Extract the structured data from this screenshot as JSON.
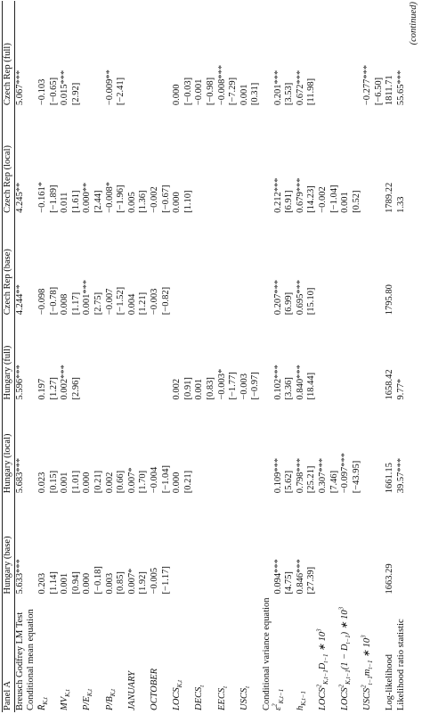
{
  "panel": "Panel A",
  "columns": [
    "Hungary (base)",
    "Hungary (local)",
    "Hungary (full)",
    "Czech Rep (base)",
    "Czech Rep (local)",
    "Czech Rep (full)"
  ],
  "rows": [
    {
      "label": "Breusch Godfrey LM Test",
      "cells": [
        "5.633***",
        "5.683***",
        "5.596***",
        "4.244**",
        "4.245**",
        "5.067***"
      ]
    },
    {
      "label": "Conditional mean equation"
    },
    {
      "label": [
        "R̄",
        {
          "sub": "K,t"
        }
      ],
      "cells": [
        "0.203",
        "0.023",
        "0.197",
        "−0.098",
        "−0.161*",
        "−0.103"
      ]
    },
    {
      "cells": [
        "[1.14]",
        "[0.15]",
        "[1.27]",
        "[−0.78]",
        "[−1.89]",
        "[−0.65]"
      ]
    },
    {
      "label": [
        "MV",
        {
          "sub": "K,t"
        }
      ],
      "cells": [
        "0.001",
        "0.001",
        "0.002***",
        "0.008",
        "0.011",
        "0.015***"
      ]
    },
    {
      "cells": [
        "[0.94]",
        "[1.01]",
        "[2.96]",
        "[1.17]",
        "[1.61]",
        "[2.92]"
      ]
    },
    {
      "label": [
        "P/E",
        {
          "sub": "K,t"
        }
      ],
      "cells": [
        "0.000",
        "0.000",
        null,
        "0.001***",
        "0.000**",
        null
      ]
    },
    {
      "cells": [
        "[−0.18]",
        "[0.21]",
        null,
        "[2.75]",
        "[2.44]",
        null
      ]
    },
    {
      "label": [
        "P/B",
        {
          "sub": "K,t"
        }
      ],
      "cells": [
        "0.003",
        "0.002",
        null,
        "−0.007",
        "−0.008*",
        "−0.009**"
      ]
    },
    {
      "cells": [
        "[0.85]",
        "[0.66]",
        null,
        "[−1.52]",
        "[−1.96]",
        "[−2.41]"
      ]
    },
    {
      "label": [
        "JANUARY"
      ],
      "cells": [
        "0.007*",
        "0.007*",
        null,
        "0.004",
        "0.005",
        null
      ]
    },
    {
      "cells": [
        "[1.92]",
        "[1.70]",
        null,
        "[1.21]",
        "[1.36]",
        null
      ]
    },
    {
      "label": [
        "OCTOBER"
      ],
      "cells": [
        "−0.005",
        "−0.004",
        null,
        "−0.003",
        "−0.002",
        null
      ]
    },
    {
      "cells": [
        "[−1.17]",
        "[−1.04]",
        null,
        "[−0.82]",
        "[−0.67]",
        null
      ]
    },
    {
      "label": [
        "LOCS",
        {
          "sub": "K,t"
        }
      ],
      "cells": [
        null,
        "0.000",
        "0.002",
        null,
        "0.000",
        "0.000"
      ]
    },
    {
      "cells": [
        null,
        "[0.21]",
        "[0.91]",
        null,
        "[1.10]",
        "[−0.03]"
      ]
    },
    {
      "label": [
        "DECS",
        {
          "sub": "t"
        }
      ],
      "cells": [
        null,
        null,
        "0.001",
        null,
        null,
        "−0.001"
      ]
    },
    {
      "cells": [
        null,
        null,
        "[0.83]",
        null,
        null,
        "[−0.98]"
      ]
    },
    {
      "label": [
        "EECS",
        {
          "sub": "t"
        }
      ],
      "cells": [
        null,
        null,
        "−0.003*",
        null,
        null,
        "−0.008***"
      ]
    },
    {
      "cells": [
        null,
        null,
        "[−1.77]",
        null,
        null,
        "[−7.29]"
      ]
    },
    {
      "label": [
        "USCS",
        {
          "sub": "t"
        }
      ],
      "cells": [
        null,
        null,
        "−0.003",
        null,
        null,
        "0.001"
      ]
    },
    {
      "cells": [
        null,
        null,
        "[−0.97]",
        null,
        null,
        "[0.31]"
      ]
    },
    {
      "label": "Conditional variance equation"
    },
    {
      "label": [
        "ε",
        {
          "sup": "2"
        },
        {
          "sub": "K,t−1"
        }
      ],
      "cells": [
        "0.094***",
        "0.109***",
        "0.102***",
        "0.207***",
        "0.212***",
        "0.201***"
      ]
    },
    {
      "cells": [
        "[4.75]",
        "[5.62]",
        "[3.36]",
        "[6.99]",
        "[6.91]",
        "[3.53]"
      ]
    },
    {
      "label": [
        "h",
        {
          "sub": "K,t−1"
        }
      ],
      "cells": [
        "0.846***",
        "0.798***",
        "0.840***",
        "0.695***",
        "0.679***",
        "0.672***"
      ]
    },
    {
      "cells": [
        "[27.39]",
        "[25.21]",
        "[18.44]",
        "[15.10]",
        "[14.23]",
        "[11.98]"
      ]
    },
    {
      "label": [
        "LOCS",
        {
          "sup": "2"
        },
        {
          "sub": "K,t−1"
        },
        "D",
        {
          "sub": "t−1"
        },
        " ∗ 10",
        {
          "sup": "3"
        }
      ],
      "cells": [
        null,
        "0.307***",
        null,
        null,
        "−0.002",
        null
      ]
    },
    {
      "cells": [
        null,
        "[7.46]",
        null,
        null,
        "[−1.04]",
        null
      ]
    },
    {
      "label": [
        "LOCS",
        {
          "sup": "2"
        },
        {
          "sub": "K,t−1"
        },
        "(1 − D",
        {
          "sub": "t−1"
        },
        ") ∗ 10",
        {
          "sup": "3"
        }
      ],
      "cells": [
        null,
        "−0.097***",
        null,
        null,
        "0.001",
        null
      ]
    },
    {
      "cells": [
        null,
        "[−43.95]",
        null,
        null,
        "[0.52]",
        null
      ]
    },
    {
      "label": [
        "USCS",
        {
          "sup": "2"
        },
        {
          "sub": "t−1"
        },
        "m",
        {
          "sub": "t−1"
        },
        " ∗ 10",
        {
          "sup": "3"
        }
      ],
      "cells": [
        null,
        null,
        null,
        null,
        null,
        "−0.277***"
      ]
    },
    {
      "cells": [
        null,
        null,
        null,
        null,
        null,
        "[−6.50]"
      ]
    },
    {
      "label": "Log-likelihood",
      "cells": [
        "1663.29",
        "1661.15",
        "1658.42",
        "1795.80",
        "1789.22",
        "1811.71"
      ]
    },
    {
      "label": "Likelihood ratio statistic",
      "cells": [
        null,
        "39.57***",
        "9.77*",
        null,
        "1.33",
        "55.65***"
      ]
    }
  ],
  "footer": "(continued)"
}
